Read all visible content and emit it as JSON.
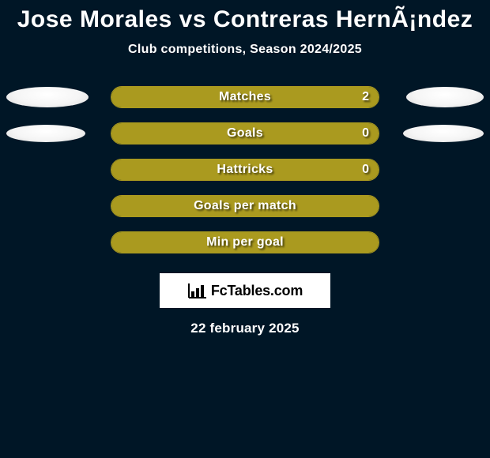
{
  "title": "Jose Morales vs Contreras HernÃ¡ndez",
  "subtitle": "Club competitions, Season 2024/2025",
  "date": "22 february 2025",
  "colors": {
    "background": "#001626",
    "bar_border": "#aa9a1f",
    "bar_fill": "#aa9a1f",
    "bar_track": "#001626",
    "ellipse": "#f2f2f2",
    "text": "#ffffff"
  },
  "ellipse_sizes": {
    "row0": {
      "left_w": 104,
      "left_h": 26,
      "right_w": 98,
      "right_h": 26
    },
    "row1": {
      "left_w": 100,
      "left_h": 22,
      "right_w": 102,
      "right_h": 22
    }
  },
  "stats": [
    {
      "label": "Matches",
      "value": "2",
      "fill_pct": 100,
      "show_value": true,
      "show_left_ellipse": true,
      "show_right_ellipse": true
    },
    {
      "label": "Goals",
      "value": "0",
      "fill_pct": 100,
      "show_value": true,
      "show_left_ellipse": true,
      "show_right_ellipse": true
    },
    {
      "label": "Hattricks",
      "value": "0",
      "fill_pct": 100,
      "show_value": true,
      "show_left_ellipse": false,
      "show_right_ellipse": false
    },
    {
      "label": "Goals per match",
      "value": "",
      "fill_pct": 100,
      "show_value": false,
      "show_left_ellipse": false,
      "show_right_ellipse": false
    },
    {
      "label": "Min per goal",
      "value": "",
      "fill_pct": 100,
      "show_value": false,
      "show_left_ellipse": false,
      "show_right_ellipse": false
    }
  ],
  "logo": {
    "text": "FcTables.com",
    "icon_name": "bar-chart-icon"
  }
}
